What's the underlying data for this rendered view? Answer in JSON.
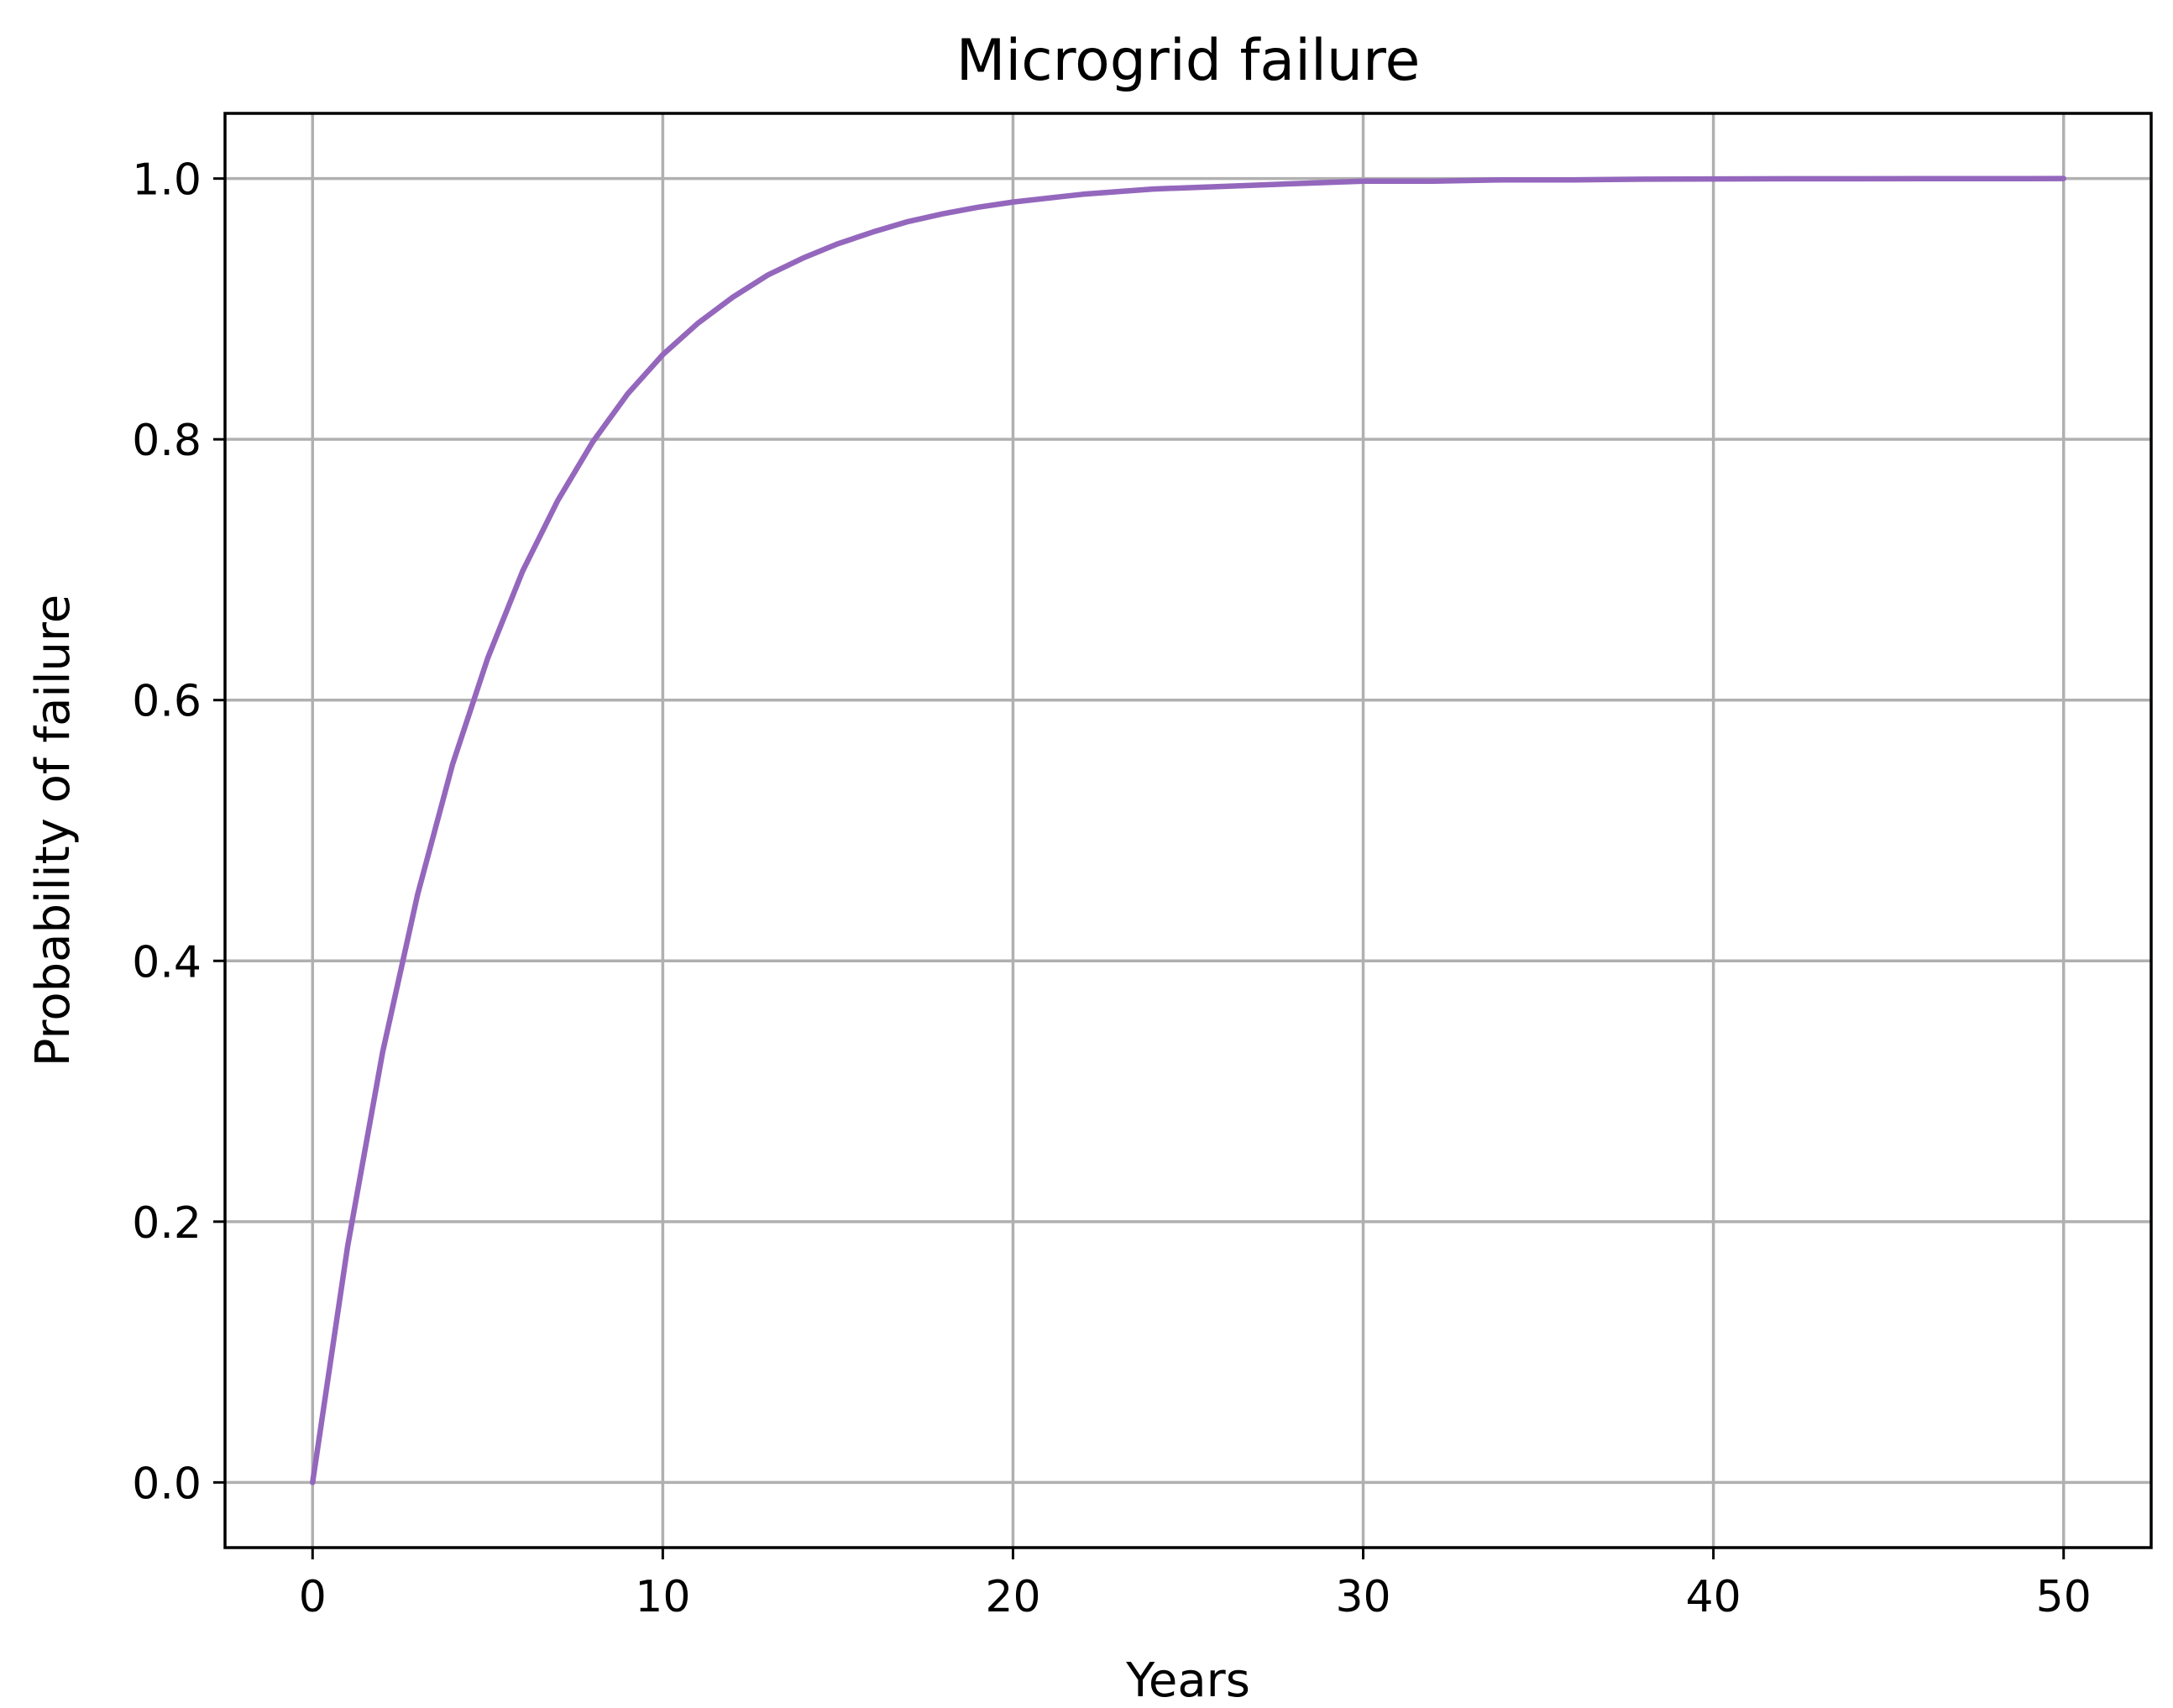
{
  "chart_data": {
    "type": "line",
    "title": "Microgrid failure",
    "xlabel": "Years",
    "ylabel": "Probability of failure",
    "xlim": [
      -2.5,
      52.5
    ],
    "ylim": [
      -0.05,
      1.05
    ],
    "xticks": [
      0,
      10,
      20,
      30,
      40,
      50
    ],
    "xtick_labels": [
      "0",
      "10",
      "20",
      "30",
      "40",
      "50"
    ],
    "yticks": [
      0.0,
      0.2,
      0.4,
      0.6,
      0.8,
      1.0
    ],
    "ytick_labels": [
      "0.0",
      "0.2",
      "0.4",
      "0.6",
      "0.8",
      "1.0"
    ],
    "grid": true,
    "series": [
      {
        "color": "#9467bd",
        "x": [
          0,
          1,
          2,
          3,
          4,
          5,
          6,
          7,
          8,
          9,
          10,
          11,
          12,
          13,
          14,
          15,
          16,
          17,
          18,
          19,
          20,
          22,
          24,
          26,
          28,
          30,
          32,
          34,
          36,
          38,
          40,
          42,
          44,
          46,
          48,
          50
        ],
        "y": [
          0.0,
          0.181,
          0.33,
          0.451,
          0.551,
          0.632,
          0.699,
          0.753,
          0.798,
          0.835,
          0.865,
          0.889,
          0.909,
          0.926,
          0.939,
          0.95,
          0.959,
          0.967,
          0.973,
          0.978,
          0.982,
          0.988,
          0.992,
          0.994,
          0.996,
          0.998,
          0.998,
          0.999,
          0.999,
          0.9995,
          0.9997,
          0.9998,
          0.9998,
          0.9999,
          0.9999,
          1.0
        ]
      }
    ]
  }
}
